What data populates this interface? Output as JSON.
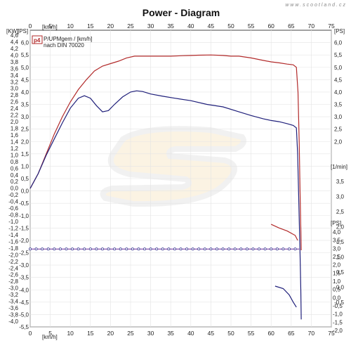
{
  "chart_data": {
    "type": "line",
    "title": "Power - Diagram",
    "watermark_url": "www.scootland.cz",
    "x_axis": {
      "label": "[km/h]",
      "range": [
        0,
        75
      ],
      "ticks": [
        0,
        5,
        10,
        15,
        20,
        25,
        30,
        35,
        40,
        45,
        50,
        55,
        60,
        65,
        70,
        75
      ]
    },
    "y_axis_kw": {
      "label": "[KW]",
      "range": [
        -4.0,
        4.6
      ],
      "ticks": [
        "4,6",
        "4,4",
        "4,2",
        "4,0",
        "3,8",
        "3,6",
        "3,4",
        "3,2",
        "3,0",
        "2,8",
        "2,6",
        "2,4",
        "2,2",
        "2,0",
        "1,8",
        "1,6",
        "1,4",
        "1,2",
        "1,0",
        "0,8",
        "0,6",
        "0,4",
        "0,2",
        "0,0",
        "-0,2",
        "-0,4",
        "-0,6",
        "-0,8",
        "-1,0",
        "-1,2",
        "-1,4",
        "-1,6",
        "-1,8",
        "-2,0",
        "-2,2",
        "-2,4",
        "-2,6",
        "-2,8",
        "-3,0",
        "-3,2",
        "-3,4",
        "-3,6",
        "-3,8",
        "-4,0"
      ]
    },
    "y_axis_ps": {
      "label": "[PS]",
      "range": [
        -5.5,
        6.5
      ],
      "ticks": [
        "6,0",
        "5,5",
        "5,0",
        "4,5",
        "4,0",
        "3,5",
        "3,0",
        "2,5",
        "2,0",
        "1,5",
        "1,0",
        "0,5",
        "0,0",
        "-0,5",
        "-1,0",
        "-1,5",
        "-2,0",
        "-2,5",
        "-3,0",
        "-3,5",
        "-4,0",
        "-4,5",
        "-5,0",
        "-5,5"
      ]
    },
    "right_axis_ps_top": {
      "label": "[PS]",
      "ticks": [
        "6,0",
        "5,5",
        "5,0",
        "4,5",
        "4,0",
        "3,5",
        "3,0",
        "2,5",
        "2,0"
      ]
    },
    "right_axis_rpm": {
      "label": "[1/min]",
      "ticks": [
        "3,5",
        "3,0",
        "2,5",
        "2,0",
        "1,5",
        "1,0",
        "0,5",
        "0,0",
        "-0,5"
      ]
    },
    "right_axis_ps_bottom": {
      "label": "[PS]",
      "ticks": [
        "4,0",
        "3,5",
        "3,0",
        "2,5",
        "2,0",
        "1,5",
        "1,0",
        "0,5",
        "0,0",
        "-0,5",
        "-1,0",
        "-1,5",
        "-2,0"
      ]
    },
    "legend": {
      "badge": "p4",
      "lines": [
        "P/UPMgem / [km/h]",
        "nach DIN 70020"
      ]
    },
    "series": [
      {
        "color": "#b22a2a",
        "axis": "ps",
        "points": [
          [
            0,
            0.1
          ],
          [
            2,
            0.7
          ],
          [
            4,
            1.5
          ],
          [
            6,
            2.3
          ],
          [
            8,
            3.0
          ],
          [
            10,
            3.6
          ],
          [
            12,
            4.1
          ],
          [
            14,
            4.5
          ],
          [
            16,
            4.85
          ],
          [
            18,
            5.05
          ],
          [
            20,
            5.15
          ],
          [
            22,
            5.25
          ],
          [
            24,
            5.38
          ],
          [
            26,
            5.45
          ],
          [
            28,
            5.45
          ],
          [
            30,
            5.45
          ],
          [
            32,
            5.45
          ],
          [
            35,
            5.45
          ],
          [
            38,
            5.47
          ],
          [
            40,
            5.48
          ],
          [
            42,
            5.49
          ],
          [
            45,
            5.5
          ],
          [
            48,
            5.48
          ],
          [
            50,
            5.45
          ],
          [
            52,
            5.45
          ],
          [
            55,
            5.38
          ],
          [
            58,
            5.28
          ],
          [
            60,
            5.22
          ],
          [
            62,
            5.18
          ],
          [
            64,
            5.13
          ],
          [
            65.5,
            5.1
          ],
          [
            66.3,
            5.0
          ],
          [
            66.7,
            4.0
          ],
          [
            67.0,
            2.0
          ],
          [
            67.2,
            0.0
          ],
          [
            67.4,
            -1.5
          ],
          [
            67.5,
            -2.4
          ]
        ]
      },
      {
        "color": "#b22a2a",
        "axis": "ps",
        "points": [
          [
            60,
            -1.35
          ],
          [
            62,
            -1.5
          ],
          [
            64,
            -1.62
          ],
          [
            66,
            -1.8
          ],
          [
            66.6,
            -2.0
          ]
        ]
      },
      {
        "color": "#1f1f7a",
        "axis": "ps",
        "points": [
          [
            0,
            0.1
          ],
          [
            2,
            0.7
          ],
          [
            4,
            1.45
          ],
          [
            6,
            2.1
          ],
          [
            8,
            2.75
          ],
          [
            10,
            3.35
          ],
          [
            12,
            3.75
          ],
          [
            13.5,
            3.85
          ],
          [
            15,
            3.75
          ],
          [
            16.5,
            3.45
          ],
          [
            18,
            3.2
          ],
          [
            19.5,
            3.25
          ],
          [
            21,
            3.5
          ],
          [
            23,
            3.8
          ],
          [
            25,
            4.0
          ],
          [
            26.5,
            4.05
          ],
          [
            28,
            4.02
          ],
          [
            30,
            3.92
          ],
          [
            33,
            3.83
          ],
          [
            36,
            3.75
          ],
          [
            40,
            3.65
          ],
          [
            44,
            3.5
          ],
          [
            48,
            3.4
          ],
          [
            52,
            3.2
          ],
          [
            55,
            3.05
          ],
          [
            58,
            2.92
          ],
          [
            60,
            2.85
          ],
          [
            62,
            2.8
          ],
          [
            64,
            2.72
          ],
          [
            65.5,
            2.65
          ],
          [
            66.3,
            2.55
          ],
          [
            66.6,
            1.5
          ],
          [
            66.9,
            -0.5
          ],
          [
            67.2,
            -2.5
          ],
          [
            67.4,
            -4.0
          ],
          [
            67.5,
            -5.2
          ]
        ]
      },
      {
        "color": "#1f1f7a",
        "axis": "ps",
        "points": [
          [
            61,
            -3.85
          ],
          [
            63,
            -3.95
          ],
          [
            64.5,
            -4.2
          ],
          [
            65.5,
            -4.5
          ],
          [
            66.3,
            -4.7
          ]
        ]
      },
      {
        "color": "#6a2a9a",
        "axis": "ps",
        "style": "dots",
        "points": [
          [
            0,
            -2.35
          ],
          [
            67,
            -2.35
          ]
        ]
      }
    ],
    "grid": true,
    "legend_position": "top-left"
  }
}
